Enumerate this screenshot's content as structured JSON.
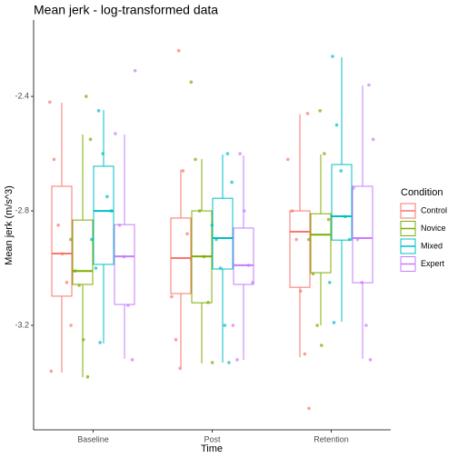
{
  "chart_data": {
    "type": "box",
    "title": "Mean jerk - log-transformed data",
    "x_label": "Time",
    "y_label": "Mean jerk (m/s^3)",
    "legend_title": "Condition",
    "legend_position": "right",
    "categories": [
      "Baseline",
      "Post",
      "Retention"
    ],
    "ylim": [
      -3.565,
      -2.133
    ],
    "yticks": [
      -2.4,
      -2.8,
      -3.2
    ],
    "grid": false,
    "series": [
      {
        "name": "Control",
        "color": "#F8766D",
        "min": [
          -3.365,
          -3.346,
          -3.311
        ],
        "q1": [
          -3.098,
          -3.089,
          -3.067
        ],
        "median": [
          -2.949,
          -2.965,
          -2.873
        ],
        "q3": [
          -2.714,
          -2.825,
          -2.8
        ],
        "max": [
          -2.422,
          -2.657,
          -2.463
        ],
        "points": [
          [
            -2.42,
            -2.62,
            -2.85,
            -2.95,
            -3.05,
            -3.2,
            -3.36
          ],
          [
            -2.24,
            -2.66,
            -2.88,
            -2.97,
            -3.1,
            -3.25,
            -3.35
          ],
          [
            -2.46,
            -2.62,
            -2.8,
            -2.9,
            -3.08,
            -3.3,
            -3.49
          ]
        ]
      },
      {
        "name": "Novice",
        "color": "#7CAE00",
        "min": [
          -3.381,
          -3.333,
          -3.2
        ],
        "q1": [
          -3.057,
          -3.121,
          -3.016
        ],
        "median": [
          -3.01,
          -2.959,
          -2.883
        ],
        "q3": [
          -2.832,
          -2.8,
          -2.81
        ],
        "max": [
          -2.533,
          -2.619,
          -2.603
        ],
        "points": [
          [
            -2.4,
            -2.55,
            -2.9,
            -3.01,
            -3.06,
            -3.25,
            -3.38
          ],
          [
            -2.35,
            -2.62,
            -2.8,
            -2.96,
            -3.12,
            -3.33
          ],
          [
            -2.45,
            -2.6,
            -2.83,
            -2.9,
            -3.02,
            -3.2,
            -3.27
          ]
        ]
      },
      {
        "name": "Mixed",
        "color": "#00BFC4",
        "min": [
          -3.263,
          -3.33,
          -3.187
        ],
        "q1": [
          -2.987,
          -3.003,
          -2.902
        ],
        "median": [
          -2.8,
          -2.895,
          -2.819
        ],
        "q3": [
          -2.644,
          -2.756,
          -2.638
        ],
        "max": [
          -2.448,
          -2.603,
          -2.263
        ],
        "points": [
          [
            -2.45,
            -2.6,
            -2.75,
            -2.8,
            -2.9,
            -3.0,
            -3.26
          ],
          [
            -2.6,
            -2.7,
            -2.85,
            -2.9,
            -3.0,
            -3.2,
            -3.33
          ],
          [
            -2.26,
            -2.5,
            -2.66,
            -2.82,
            -2.9,
            -3.05,
            -3.19
          ]
        ]
      },
      {
        "name": "Expert",
        "color": "#C77CFF",
        "min": [
          -3.317,
          -3.321,
          -3.317
        ],
        "q1": [
          -3.127,
          -3.057,
          -3.051
        ],
        "median": [
          -2.959,
          -2.99,
          -2.895
        ],
        "q3": [
          -2.848,
          -2.86,
          -2.714
        ],
        "max": [
          -2.533,
          -2.606,
          -2.362
        ],
        "points": [
          [
            -2.31,
            -2.53,
            -2.85,
            -2.96,
            -3.13,
            -3.32
          ],
          [
            -2.6,
            -2.8,
            -2.99,
            -3.05,
            -3.2,
            -3.32
          ],
          [
            -2.36,
            -2.55,
            -2.72,
            -2.9,
            -3.05,
            -3.2,
            -3.32
          ]
        ]
      }
    ]
  }
}
